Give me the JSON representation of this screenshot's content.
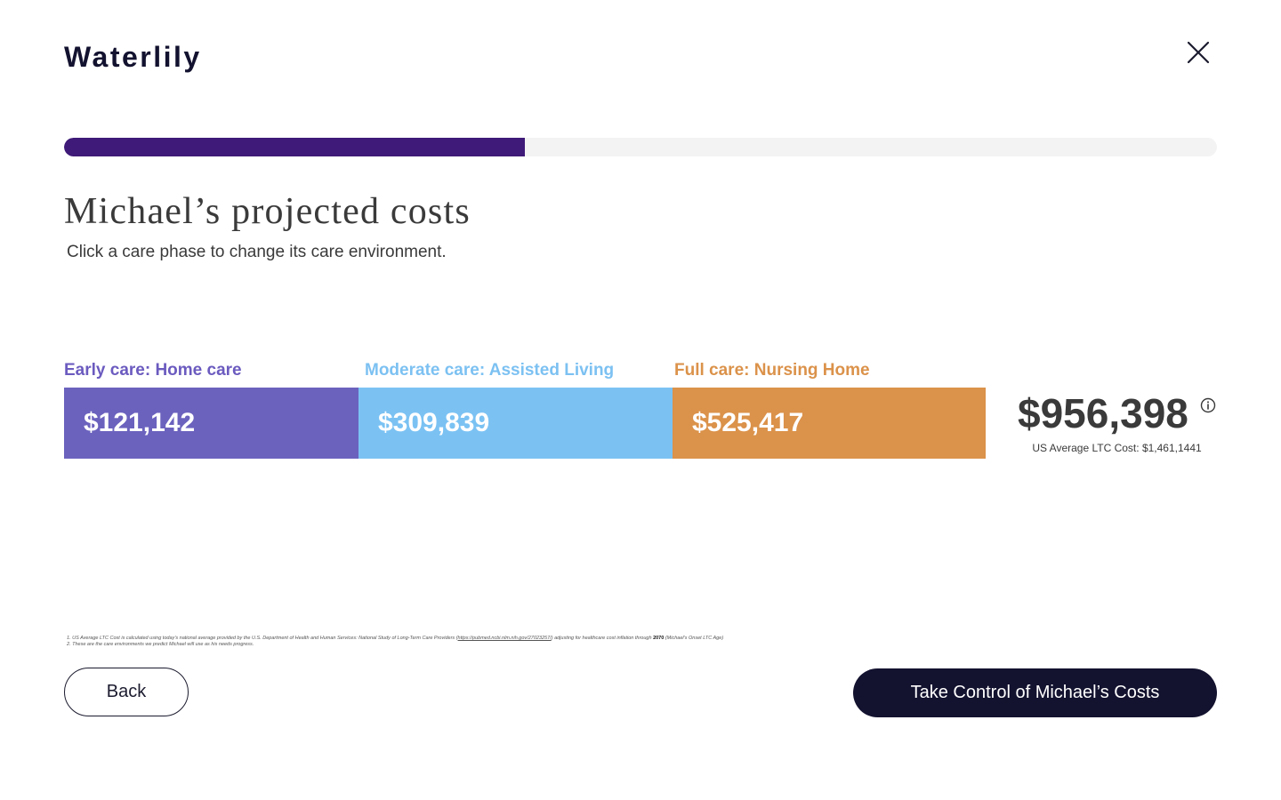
{
  "header": {
    "logo": "Waterlily",
    "close_icon": "close-icon"
  },
  "progress": {
    "fraction": 0.4,
    "color": "#3f1a78"
  },
  "main": {
    "title": "Michael’s projected costs",
    "subtitle": "Click a care phase to change its care environment."
  },
  "phases": [
    {
      "label": "Early care: Home care",
      "value": "$121,142",
      "color": "#6b62be"
    },
    {
      "label": "Moderate care: Assisted Living",
      "value": "$309,839",
      "color": "#7bc2f3"
    },
    {
      "label": "Full care:  Nursing Home",
      "value": "$525,417",
      "color": "#db924a"
    }
  ],
  "total": {
    "value": "$956,398",
    "info_icon": "info-icon",
    "us_average": "US Average LTC Cost: $1,461,1441"
  },
  "footnotes": {
    "line1_prefix": "1. US Average LTC Cost is calculated using today’s national average provided by the U.S. Department of Health and Human Services: National Study of Long-Term Care Providers (",
    "line1_link": "https://pubmed.ncbi.nlm.nih.gov/27023257/",
    "line1_mid": ") adjusting for healthcare cost inflation through ",
    "line1_year": "2070",
    "line1_suffix": " (Michael’s Onset LTC Age)",
    "line2": "2. These are the care environments we predict Michael will use as his needs progress."
  },
  "buttons": {
    "back_label": "Back",
    "cta_label": "Take Control of Michael’s Costs"
  }
}
